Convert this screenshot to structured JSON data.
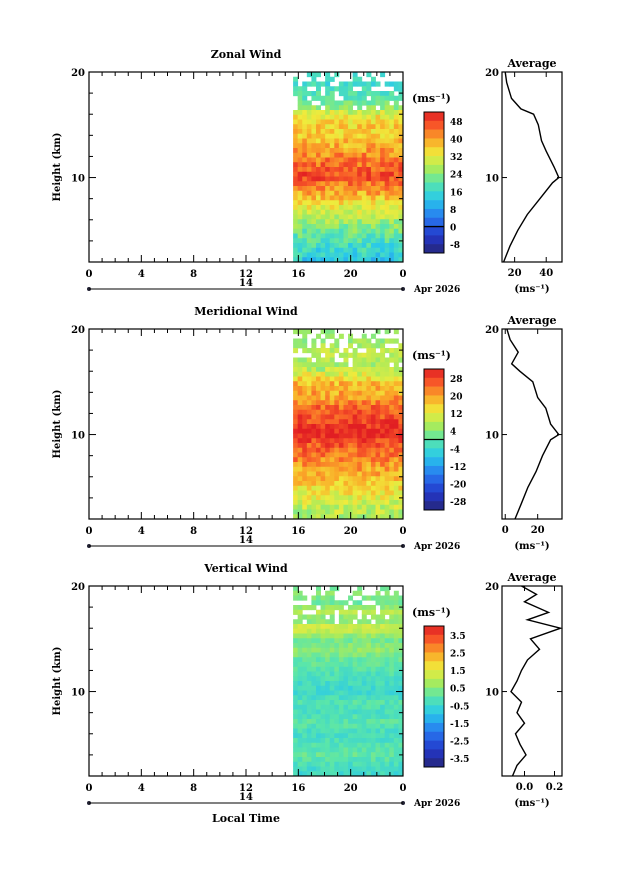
{
  "chart_data": [
    {
      "type": "heatmap",
      "title": "Zonal Wind",
      "xlabel": "",
      "ylabel": "Height (km)",
      "x_ticks": [
        "0",
        "4",
        "8",
        "12",
        "16",
        "20",
        "0"
      ],
      "y_ticks": [
        "20",
        "10"
      ],
      "date_label": "14",
      "month_label": "Apr 2026",
      "ylim": [
        2,
        20
      ],
      "data_start_hour": 15.6,
      "colorbar": {
        "unit": "(ms⁻¹)",
        "ticks": [
          "48",
          "40",
          "32",
          "24",
          "16",
          "8",
          "0",
          "-8"
        ],
        "min": -12,
        "max": 52,
        "zero": 0
      },
      "profile": {
        "title": "Average",
        "xlabel": "(ms⁻¹)",
        "x_ticks": [
          "20",
          "40"
        ],
        "y_ticks": [
          "20",
          "10"
        ],
        "xlim": [
          12,
          50
        ],
        "points": [
          [
            13,
            2
          ],
          [
            17,
            3.5
          ],
          [
            22,
            5
          ],
          [
            28,
            6.5
          ],
          [
            36,
            8
          ],
          [
            44,
            9.5
          ],
          [
            48,
            10
          ],
          [
            45,
            11
          ],
          [
            40,
            12.5
          ],
          [
            37,
            13.5
          ],
          [
            35,
            15
          ],
          [
            32,
            16
          ],
          [
            24,
            16.5
          ],
          [
            18,
            17.5
          ],
          [
            15,
            19
          ],
          [
            14,
            20
          ]
        ]
      }
    },
    {
      "type": "heatmap",
      "title": "Meridional Wind",
      "xlabel": "",
      "ylabel": "Height (km)",
      "x_ticks": [
        "0",
        "4",
        "8",
        "12",
        "16",
        "20",
        "0"
      ],
      "y_ticks": [
        "20",
        "10"
      ],
      "date_label": "14",
      "month_label": "Apr 2026",
      "ylim": [
        2,
        20
      ],
      "data_start_hour": 15.6,
      "colorbar": {
        "unit": "(ms⁻¹)",
        "ticks": [
          "28",
          "20",
          "12",
          "4",
          "-4",
          "-12",
          "-20",
          "-28"
        ],
        "min": -32,
        "max": 32,
        "zero": 0
      },
      "profile": {
        "title": "Average",
        "xlabel": "(ms⁻¹)",
        "x_ticks": [
          "0",
          "20"
        ],
        "y_ticks": [
          "20",
          "10"
        ],
        "xlim": [
          -2,
          35
        ],
        "points": [
          [
            6,
            2
          ],
          [
            10,
            3.5
          ],
          [
            14,
            5
          ],
          [
            19,
            6.5
          ],
          [
            23,
            8
          ],
          [
            28,
            9.5
          ],
          [
            33,
            10
          ],
          [
            28,
            11
          ],
          [
            25,
            12.5
          ],
          [
            20,
            13.5
          ],
          [
            17,
            15
          ],
          [
            9,
            16
          ],
          [
            4,
            16.7
          ],
          [
            8,
            17.8
          ],
          [
            3,
            19
          ],
          [
            1,
            20
          ]
        ]
      }
    },
    {
      "type": "heatmap",
      "title": "Vertical Wind",
      "xlabel": "Local Time",
      "ylabel": "Height (km)",
      "x_ticks": [
        "0",
        "4",
        "8",
        "12",
        "16",
        "20",
        "0"
      ],
      "y_ticks": [
        "20",
        "10"
      ],
      "date_label": "14",
      "month_label": "Apr 2026",
      "ylim": [
        2,
        20
      ],
      "data_start_hour": 15.6,
      "colorbar": {
        "unit": "(ms⁻¹)",
        "ticks": [
          "3.5",
          "2.5",
          "1.5",
          "0.5",
          "-0.5",
          "-1.5",
          "-2.5",
          "-3.5"
        ],
        "min": -4,
        "max": 4,
        "zero": null
      },
      "profile": {
        "title": "Average",
        "xlabel": "(ms⁻¹)",
        "x_ticks": [
          "0.0",
          "0.2"
        ],
        "y_ticks": [
          "20",
          "10"
        ],
        "xlim": [
          -0.15,
          0.25
        ],
        "points": [
          [
            -0.08,
            2
          ],
          [
            -0.05,
            3
          ],
          [
            0.01,
            4
          ],
          [
            -0.03,
            5
          ],
          [
            -0.06,
            6
          ],
          [
            0.0,
            7
          ],
          [
            -0.05,
            8
          ],
          [
            -0.02,
            9
          ],
          [
            -0.09,
            10
          ],
          [
            -0.05,
            11
          ],
          [
            -0.02,
            12
          ],
          [
            0.02,
            13
          ],
          [
            0.1,
            14
          ],
          [
            0.04,
            15
          ],
          [
            0.24,
            16
          ],
          [
            0.02,
            16.8
          ],
          [
            0.16,
            17.5
          ],
          [
            0.0,
            18.5
          ],
          [
            0.08,
            19.2
          ],
          [
            -0.02,
            20
          ]
        ]
      }
    }
  ]
}
